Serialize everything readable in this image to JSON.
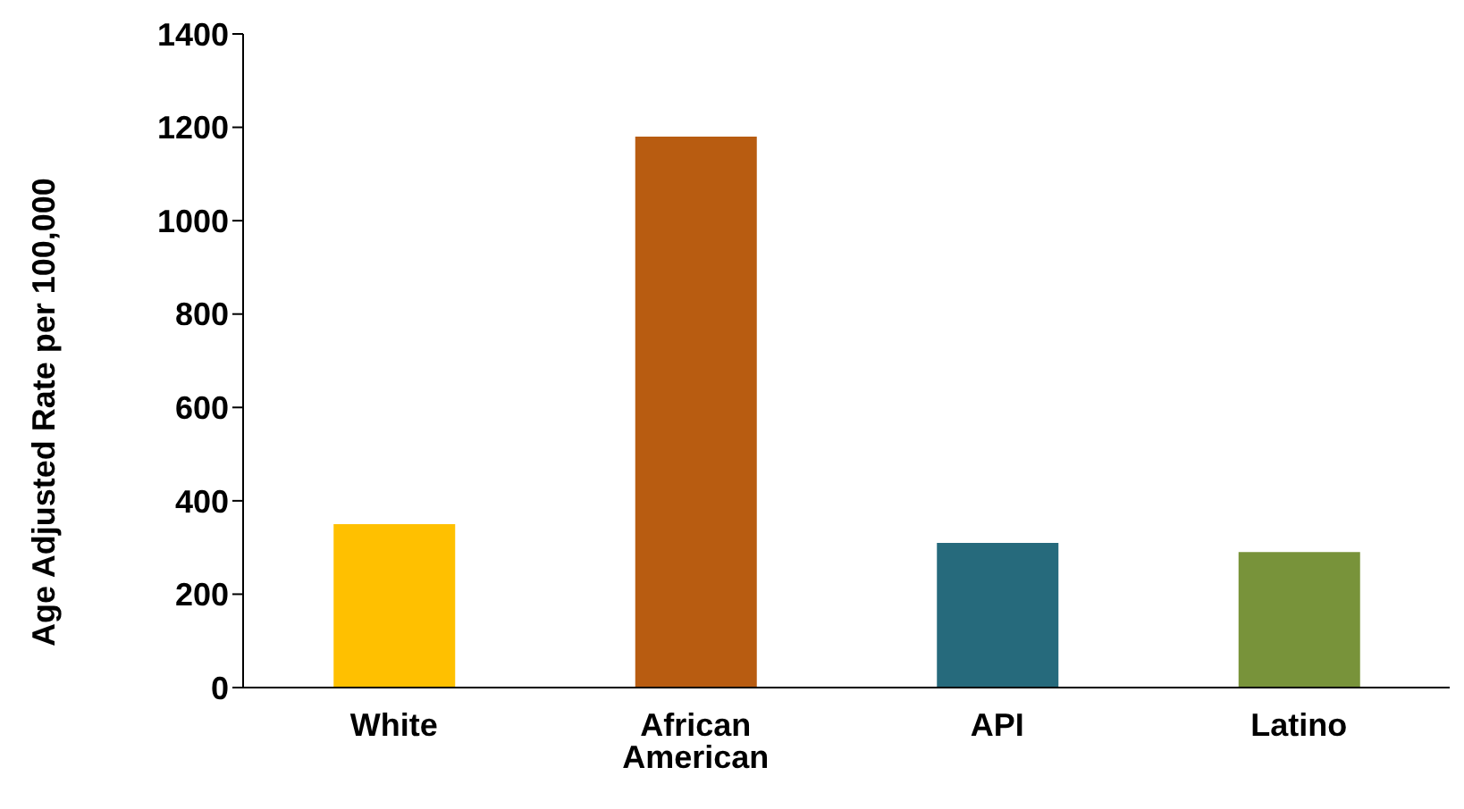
{
  "chart_data": {
    "type": "bar",
    "ylabel": "Age Adjusted Rate per 100,000",
    "categories": [
      "White",
      "African American",
      "API",
      "Latino"
    ],
    "values": [
      350,
      1180,
      310,
      290
    ],
    "colors": [
      "#ffc000",
      "#b85c11",
      "#266a7c",
      "#78933a"
    ],
    "ylim": [
      0,
      1400
    ],
    "yticks": [
      0,
      200,
      400,
      600,
      800,
      1000,
      1200,
      1400
    ],
    "grid": false,
    "legend": false
  }
}
